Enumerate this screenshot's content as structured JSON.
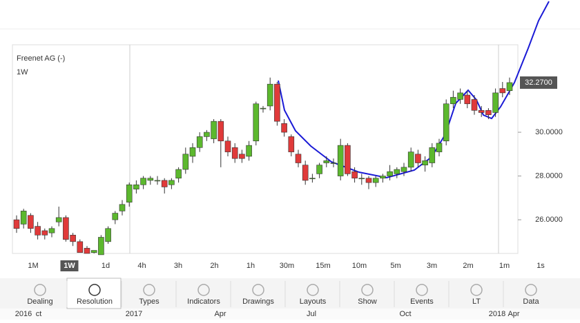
{
  "header": {
    "title": "Freenet AG (-)",
    "resolution": "1W"
  },
  "chart_data": {
    "type": "candlestick",
    "open": [
      26.0,
      25.8,
      26.2,
      25.7,
      25.5,
      25.4,
      25.9,
      26.1,
      25.3,
      25.0,
      24.7,
      24.5,
      24.4,
      25.0,
      26.0,
      26.4,
      26.8,
      27.4,
      27.6,
      27.8,
      27.8,
      27.8,
      27.6,
      27.9,
      28.3,
      28.9,
      29.3,
      29.8,
      29.7,
      30.5,
      29.6,
      29.3,
      29.0,
      28.9,
      29.6,
      31.1,
      31.2,
      32.2,
      30.4,
      29.8,
      29.0,
      28.5,
      27.9,
      28.1,
      28.6,
      28.6,
      28.0,
      29.4,
      28.2,
      27.9,
      27.9,
      27.7,
      27.9,
      28.0,
      28.1,
      28.2,
      28.4,
      29.0,
      28.5,
      28.6,
      29.1,
      29.6,
      31.3,
      31.5,
      31.7,
      31.5,
      31.0,
      31.0,
      30.9,
      32.0,
      31.9
    ],
    "high": [
      26.2,
      26.5,
      26.3,
      25.9,
      25.6,
      25.7,
      26.6,
      26.2,
      25.4,
      25.1,
      24.8,
      24.6,
      25.3,
      25.7,
      26.4,
      26.9,
      27.7,
      27.8,
      28.0,
      28.0,
      28.0,
      27.9,
      27.9,
      28.4,
      29.3,
      29.5,
      30.0,
      30.1,
      30.6,
      30.6,
      29.8,
      29.5,
      29.2,
      29.6,
      31.4,
      31.2,
      32.5,
      32.3,
      30.6,
      29.9,
      29.2,
      28.7,
      28.1,
      28.6,
      28.9,
      28.8,
      29.7,
      29.5,
      28.4,
      28.1,
      28.0,
      28.0,
      28.1,
      28.5,
      28.4,
      28.6,
      29.3,
      29.2,
      28.9,
      29.5,
      29.7,
      31.5,
      31.9,
      32.0,
      31.9,
      31.7,
      31.2,
      31.1,
      32.0,
      32.3,
      32.5
    ],
    "low": [
      25.4,
      25.6,
      25.4,
      25.1,
      25.1,
      25.2,
      25.7,
      25.0,
      24.8,
      24.5,
      24.46,
      24.46,
      24.46,
      24.9,
      25.8,
      26.2,
      26.6,
      27.2,
      27.4,
      27.6,
      27.6,
      27.2,
      27.4,
      27.7,
      28.1,
      28.6,
      29.1,
      29.6,
      29.5,
      28.4,
      28.9,
      28.6,
      28.6,
      28.7,
      29.4,
      30.9,
      31.0,
      30.3,
      29.8,
      28.9,
      28.4,
      27.6,
      27.7,
      27.9,
      28.4,
      28.4,
      27.8,
      28.0,
      27.7,
      27.6,
      27.4,
      27.5,
      27.7,
      27.8,
      27.9,
      28.0,
      28.2,
      28.4,
      28.2,
      28.4,
      28.9,
      29.4,
      31.1,
      31.3,
      31.1,
      30.8,
      30.7,
      30.6,
      30.7,
      31.6,
      31.7
    ],
    "close": [
      25.6,
      26.4,
      25.6,
      25.3,
      25.3,
      25.6,
      26.1,
      25.1,
      25.0,
      24.5,
      24.46,
      24.6,
      25.2,
      25.6,
      26.3,
      26.7,
      27.6,
      27.6,
      27.9,
      27.9,
      27.8,
      27.5,
      27.8,
      28.3,
      29.0,
      29.3,
      29.8,
      30.0,
      30.5,
      29.6,
      29.1,
      28.8,
      28.8,
      29.4,
      31.3,
      31.1,
      32.2,
      30.5,
      30.0,
      29.1,
      28.6,
      27.8,
      27.9,
      28.5,
      28.7,
      28.6,
      29.4,
      28.1,
      27.9,
      27.9,
      27.7,
      27.9,
      28.0,
      28.2,
      28.3,
      28.4,
      29.1,
      28.6,
      28.7,
      29.3,
      29.5,
      31.3,
      31.6,
      31.8,
      31.3,
      31.0,
      30.9,
      30.8,
      31.8,
      31.8,
      32.27
    ],
    "up_color": "#5cb82e",
    "down_color": "#e03a3a",
    "ylim": [
      24.46,
      34.0
    ],
    "yticks": [
      {
        "value": 26,
        "label": "26.0000"
      },
      {
        "value": 28,
        "label": "28.0000"
      },
      {
        "value": 30,
        "label": "30.0000"
      }
    ],
    "last_price": {
      "value": 32.27,
      "label": "32.2700"
    },
    "time_labels": [
      "2016",
      "ct",
      "2017",
      "Apr",
      "Jul",
      "Oct",
      "2018",
      "Apr"
    ]
  },
  "resolutions": [
    "1M",
    "1W",
    "1d",
    "4h",
    "3h",
    "2h",
    "1h",
    "30m",
    "15m",
    "10m",
    "5m",
    "3m",
    "2m",
    "1m",
    "1s"
  ],
  "toolbar": [
    "Dealing",
    "Resolution",
    "Types",
    "Indicators",
    "Drawings",
    "Layouts",
    "Show",
    "Events",
    "LT",
    "Data"
  ]
}
